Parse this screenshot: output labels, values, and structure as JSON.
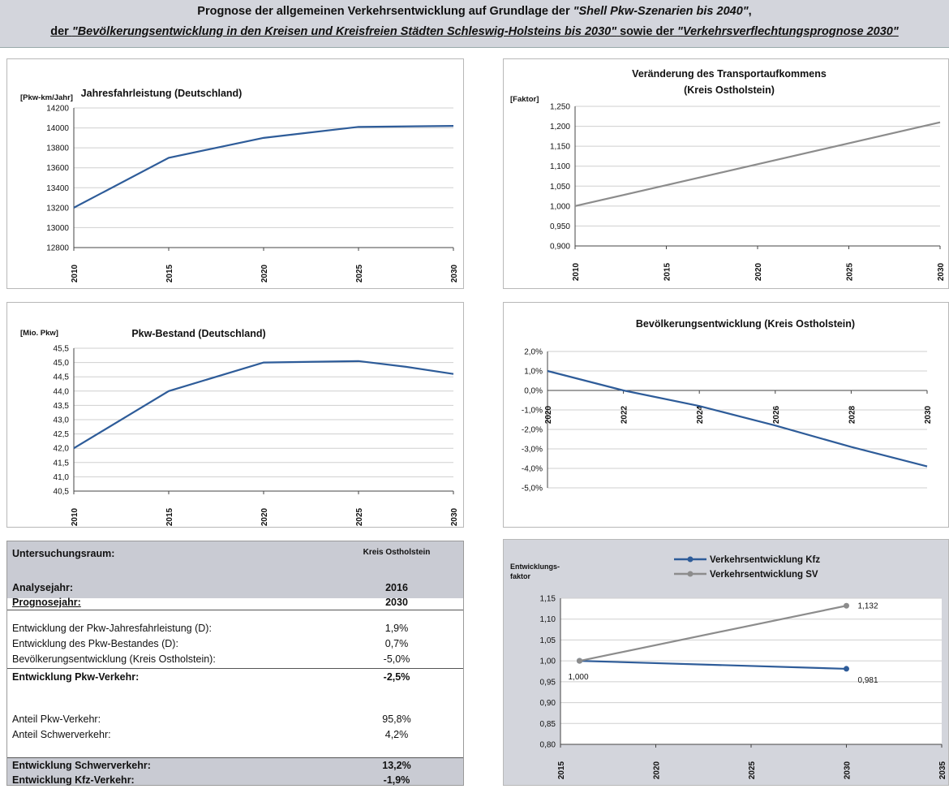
{
  "header": {
    "l1_a": "Prognose der allgemeinen Verkehrsentwicklung auf Grundlage der ",
    "l1_b": "\"Shell Pkw-Szenarien bis 2040\"",
    "l1_c": ",",
    "l2_a": "der ",
    "l2_b": "\"Bevölkerungsentwicklung in den Kreisen und Kreisfreien Städten Schleswig-Holsteins bis 2030\"",
    "l2_c": " sowie der ",
    "l2_d": "\"Verkehrsverflechtungsprognose 2030\""
  },
  "table": {
    "title": "Untersuchungsraum:",
    "region": "Kreis Ostholstein",
    "rows": [
      {
        "label": "Analysejahr:",
        "value": "2016"
      },
      {
        "label": "Prognosejahr:",
        "value": "2030"
      },
      {
        "label": "Entwicklung der Pkw-Jahresfahrleistung (D):",
        "value": "1,9%"
      },
      {
        "label": "Entwicklung des Pkw-Bestandes (D):",
        "value": "0,7%"
      },
      {
        "label": "Bevölkerungsentwicklung (Kreis Ostholstein):",
        "value": "-5,0%"
      },
      {
        "label": "Entwicklung Pkw-Verkehr:",
        "value": "-2,5%"
      },
      {
        "label": "Anteil Pkw-Verkehr:",
        "value": "95,8%"
      },
      {
        "label": "Anteil Schwerverkehr:",
        "value": "4,2%"
      },
      {
        "label": "Entwicklung Schwerverkehr:",
        "value": "13,2%"
      },
      {
        "label": "Entwicklung Kfz-Verkehr:",
        "value": "-1,9%"
      }
    ]
  },
  "chart_data": [
    {
      "type": "line",
      "title": "Jahresfahrleistung (Deutschland)",
      "ylabel": "[Pkw-km/Jahr]",
      "x": [
        2010,
        2015,
        2020,
        2025,
        2030
      ],
      "series": [
        {
          "values": [
            13200,
            13700,
            13900,
            14010,
            14020
          ],
          "color": "#2e5c99"
        }
      ],
      "ylim": [
        12800,
        14200
      ],
      "yticks": [
        "12800",
        "13000",
        "13200",
        "13400",
        "13600",
        "13800",
        "14000",
        "14200"
      ],
      "xticks": [
        "2010",
        "2015",
        "2020",
        "2025",
        "2030"
      ],
      "grid": true
    },
    {
      "type": "line",
      "title": "Veränderung des Transportaufkommens",
      "subtitle": "(Kreis Ostholstein)",
      "ylabel": "[Faktor]",
      "x": [
        2010,
        2030
      ],
      "series": [
        {
          "values": [
            1.0,
            1.21
          ],
          "color": "#8c8c8c"
        }
      ],
      "ylim": [
        0.9,
        1.25
      ],
      "yticks": [
        "0,900",
        "0,950",
        "1,000",
        "1,050",
        "1,100",
        "1,150",
        "1,200",
        "1,250"
      ],
      "xticks": [
        "2010",
        "2015",
        "2020",
        "2025",
        "2030"
      ],
      "grid": true
    },
    {
      "type": "line",
      "title": "Pkw-Bestand (Deutschland)",
      "ylabel": "[Mio. Pkw]",
      "x": [
        2010,
        2015,
        2020,
        2025,
        2027.5,
        2030
      ],
      "series": [
        {
          "values": [
            42.0,
            44.0,
            45.0,
            45.05,
            44.85,
            44.6
          ],
          "color": "#2e5c99"
        }
      ],
      "ylim": [
        40.5,
        45.5
      ],
      "yticks": [
        "40,5",
        "41,0",
        "41,5",
        "42,0",
        "42,5",
        "43,0",
        "43,5",
        "44,0",
        "44,5",
        "45,0",
        "45,5"
      ],
      "xticks": [
        "2010",
        "2015",
        "2020",
        "2025",
        "2030"
      ],
      "grid": true
    },
    {
      "type": "line",
      "title": "Bevölkerungsentwicklung (Kreis Ostholstein)",
      "x": [
        2020,
        2022,
        2024,
        2026,
        2028,
        2030
      ],
      "series": [
        {
          "values": [
            1.0,
            0.0,
            -0.8,
            -1.8,
            -2.9,
            -3.9
          ],
          "color": "#2e5c99"
        }
      ],
      "ylim": [
        -5.0,
        2.0
      ],
      "yticks": [
        "-5,0%",
        "-4,0%",
        "-3,0%",
        "-2,0%",
        "-1,0%",
        "0,0%",
        "1,0%",
        "2,0%"
      ],
      "xticks": [
        "2020",
        "2022",
        "2024",
        "2026",
        "2028",
        "2030"
      ],
      "grid": true
    },
    {
      "type": "line",
      "ylabel_l1": "Entwicklungs-",
      "ylabel_l2": "faktor",
      "x": [
        2016,
        2030
      ],
      "series": [
        {
          "name": "Verkehrsentwicklung Kfz",
          "values": [
            1.0,
            0.981
          ],
          "labels": [
            "1,000",
            "0,981"
          ],
          "color": "#2e5c99"
        },
        {
          "name": "Verkehrsentwicklung SV",
          "values": [
            1.0,
            1.132
          ],
          "labels": [
            "",
            "1,132"
          ],
          "color": "#8c8c8c"
        }
      ],
      "ylim": [
        0.8,
        1.15
      ],
      "yticks": [
        "0,80",
        "0,85",
        "0,90",
        "0,95",
        "1,00",
        "1,05",
        "1,10",
        "1,15"
      ],
      "xticks": [
        "2015",
        "2020",
        "2025",
        "2030",
        "2035"
      ],
      "legend": "top",
      "grid": true
    }
  ]
}
